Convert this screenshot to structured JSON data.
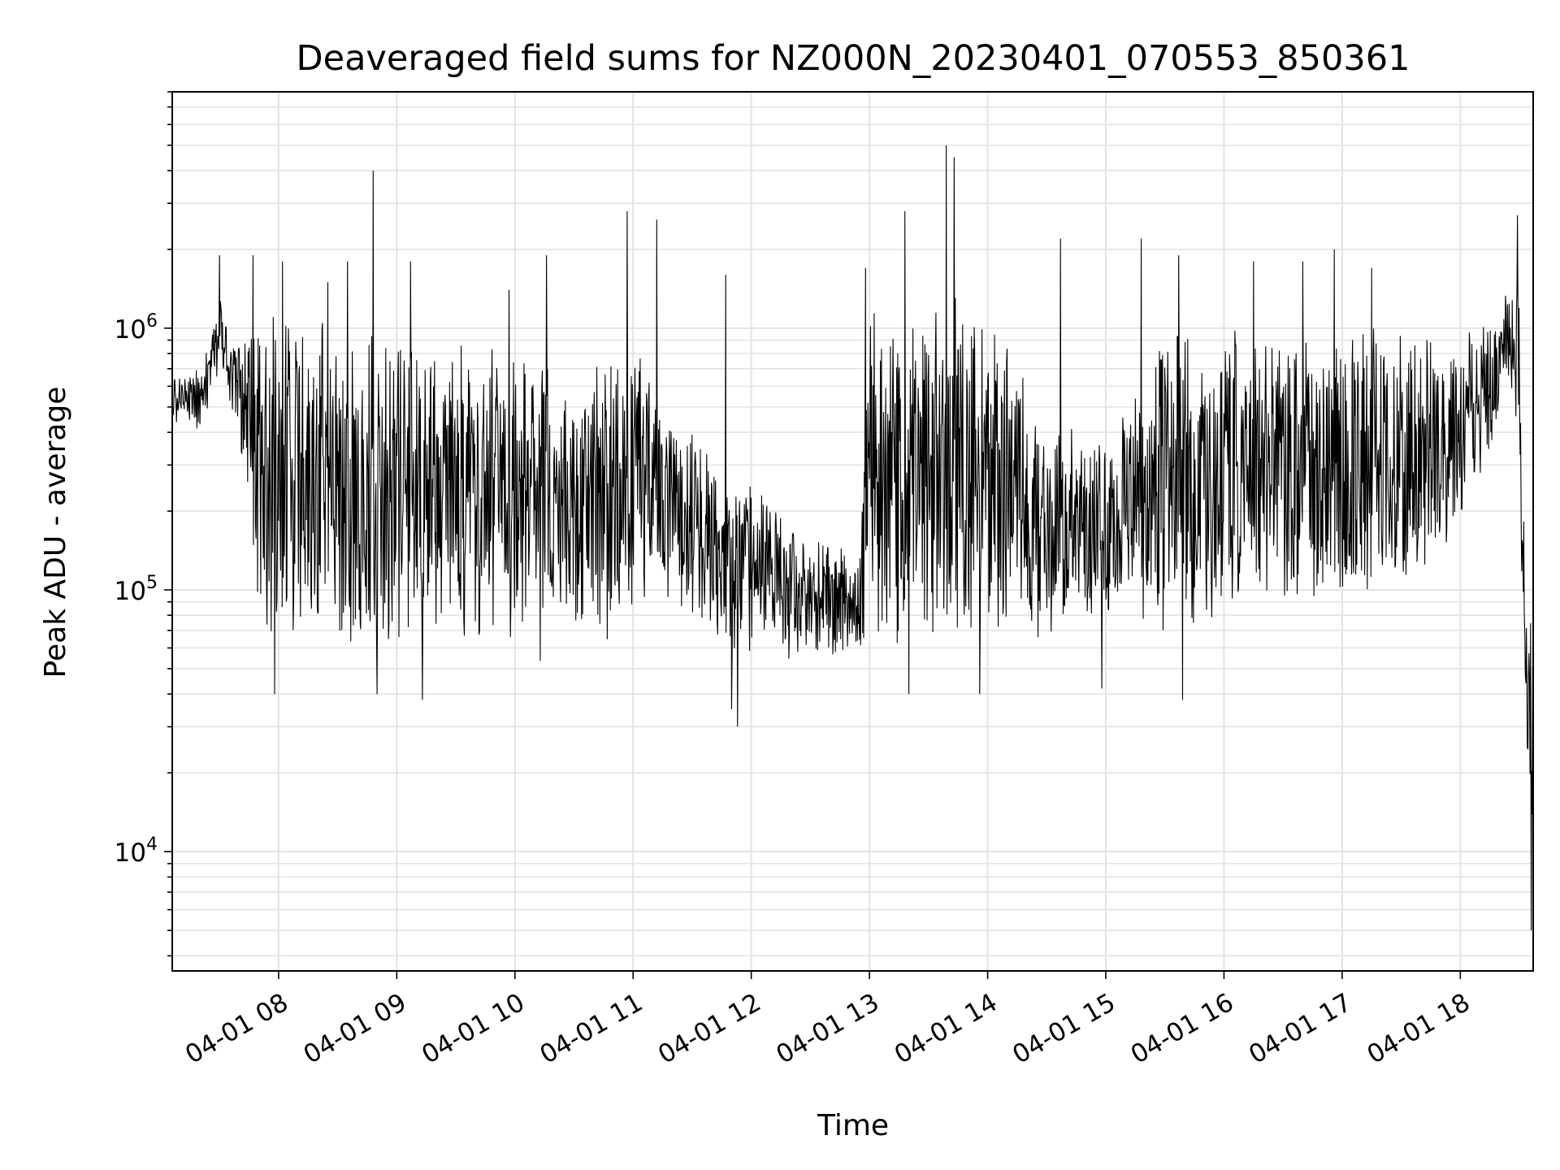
{
  "chart_data": {
    "type": "line",
    "title": "Deaveraged field sums for NZ000N_20230401_070553_850361",
    "xlabel": "Time",
    "ylabel": "Peak ADU - average",
    "x_axis": {
      "kind": "datetime",
      "range": [
        "2023-04-01 07:06",
        "2023-04-01 18:37"
      ],
      "ticks": [
        "2023-04-01 08:00",
        "2023-04-01 09:00",
        "2023-04-01 10:00",
        "2023-04-01 11:00",
        "2023-04-01 12:00",
        "2023-04-01 13:00",
        "2023-04-01 14:00",
        "2023-04-01 15:00",
        "2023-04-01 16:00",
        "2023-04-01 17:00",
        "2023-04-01 18:00"
      ],
      "tick_labels": [
        "04-01 08",
        "04-01 09",
        "04-01 10",
        "04-01 11",
        "04-01 12",
        "04-01 13",
        "04-01 14",
        "04-01 15",
        "04-01 16",
        "04-01 17",
        "04-01 18"
      ],
      "tick_label_rotation_deg": 30
    },
    "y_axis": {
      "scale": "log",
      "range": [
        3500,
        8000000
      ],
      "major_ticks": [
        10000,
        100000,
        1000000
      ],
      "major_tick_labels": [
        {
          "base": "10",
          "exponent": "4"
        },
        {
          "base": "10",
          "exponent": "5"
        },
        {
          "base": "10",
          "exponent": "6"
        }
      ]
    },
    "grid": true,
    "line_color": "#000000",
    "series": [
      {
        "envelope": [
          {
            "t": "07:06",
            "low": 420000,
            "high": 650000
          },
          {
            "t": "07:20",
            "low": 400000,
            "high": 700000
          },
          {
            "t": "07:30",
            "low": 650000,
            "high": 1300000
          },
          {
            "t": "07:40",
            "low": 350000,
            "high": 900000
          },
          {
            "t": "07:50",
            "low": 60000,
            "high": 1000000
          },
          {
            "t": "08:00",
            "low": 45000,
            "high": 1200000
          },
          {
            "t": "08:30",
            "low": 50000,
            "high": 1000000
          },
          {
            "t": "09:00",
            "low": 50000,
            "high": 900000
          },
          {
            "t": "09:30",
            "low": 50000,
            "high": 900000
          },
          {
            "t": "10:00",
            "low": 50000,
            "high": 800000
          },
          {
            "t": "10:30",
            "low": 55000,
            "high": 700000
          },
          {
            "t": "11:00",
            "low": 60000,
            "high": 900000
          },
          {
            "t": "11:20",
            "low": 80000,
            "high": 500000
          },
          {
            "t": "11:40",
            "low": 50000,
            "high": 350000
          },
          {
            "t": "12:00",
            "low": 55000,
            "high": 250000
          },
          {
            "t": "12:30",
            "low": 50000,
            "high": 160000
          },
          {
            "t": "12:55",
            "low": 50000,
            "high": 150000
          },
          {
            "t": "13:00",
            "low": 50000,
            "high": 1200000
          },
          {
            "t": "13:30",
            "low": 50000,
            "high": 1500000
          },
          {
            "t": "14:00",
            "low": 50000,
            "high": 1300000
          },
          {
            "t": "14:30",
            "low": 60000,
            "high": 500000
          },
          {
            "t": "15:00",
            "low": 70000,
            "high": 400000
          },
          {
            "t": "15:30",
            "low": 50000,
            "high": 1000000
          },
          {
            "t": "16:00",
            "low": 70000,
            "high": 1000000
          },
          {
            "t": "16:30",
            "low": 70000,
            "high": 1000000
          },
          {
            "t": "17:00",
            "low": 80000,
            "high": 1000000
          },
          {
            "t": "17:30",
            "low": 80000,
            "high": 1000000
          },
          {
            "t": "18:00",
            "low": 150000,
            "high": 900000
          },
          {
            "t": "18:15",
            "low": 300000,
            "high": 1200000
          },
          {
            "t": "18:25",
            "low": 600000,
            "high": 1500000
          },
          {
            "t": "18:30",
            "low": 200000,
            "high": 1700000
          },
          {
            "t": "18:33",
            "low": 30000,
            "high": 100000
          },
          {
            "t": "18:37",
            "low": 5000,
            "high": 100000
          }
        ],
        "spikes": [
          {
            "t": "07:30",
            "value": 1900000
          },
          {
            "t": "07:47",
            "value": 1900000
          },
          {
            "t": "08:02",
            "value": 1800000
          },
          {
            "t": "08:25",
            "value": 1500000
          },
          {
            "t": "08:35",
            "value": 1800000
          },
          {
            "t": "08:48",
            "value": 4000000
          },
          {
            "t": "09:07",
            "value": 1800000
          },
          {
            "t": "09:57",
            "value": 1400000
          },
          {
            "t": "10:16",
            "value": 1900000
          },
          {
            "t": "10:57",
            "value": 2800000
          },
          {
            "t": "11:12",
            "value": 2600000
          },
          {
            "t": "11:47",
            "value": 1600000
          },
          {
            "t": "12:58",
            "value": 1700000
          },
          {
            "t": "13:18",
            "value": 2800000
          },
          {
            "t": "13:39",
            "value": 5000000
          },
          {
            "t": "13:43",
            "value": 4500000
          },
          {
            "t": "14:37",
            "value": 2200000
          },
          {
            "t": "15:18",
            "value": 2200000
          },
          {
            "t": "15:37",
            "value": 1900000
          },
          {
            "t": "16:15",
            "value": 1800000
          },
          {
            "t": "16:40",
            "value": 1800000
          },
          {
            "t": "16:56",
            "value": 2000000
          },
          {
            "t": "17:15",
            "value": 1700000
          },
          {
            "t": "18:29",
            "value": 2700000
          }
        ],
        "dips": [
          {
            "t": "07:58",
            "value": 40000
          },
          {
            "t": "08:50",
            "value": 40000
          },
          {
            "t": "09:13",
            "value": 38000
          },
          {
            "t": "11:50",
            "value": 35000
          },
          {
            "t": "11:53",
            "value": 30000
          },
          {
            "t": "13:20",
            "value": 40000
          },
          {
            "t": "13:56",
            "value": 40000
          },
          {
            "t": "14:58",
            "value": 42000
          },
          {
            "t": "15:39",
            "value": 38000
          },
          {
            "t": "18:34",
            "value": 25000
          },
          {
            "t": "18:36",
            "value": 5000
          }
        ]
      }
    ]
  }
}
